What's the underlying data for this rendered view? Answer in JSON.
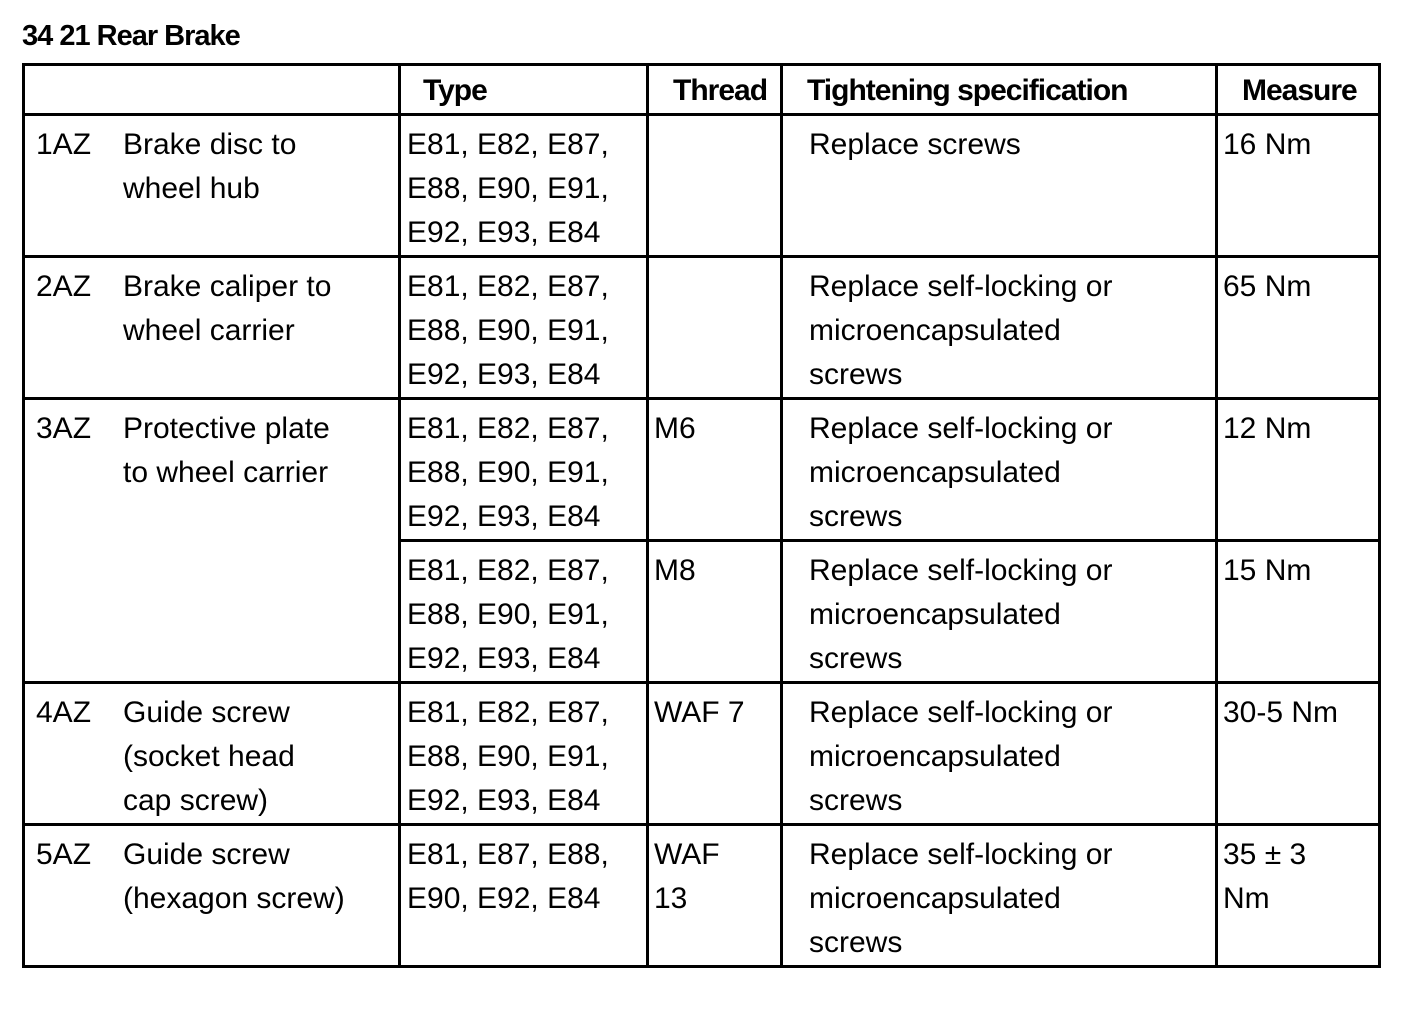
{
  "title": "34 21 Rear Brake",
  "headers": {
    "item": "",
    "type": "Type",
    "thread": "Thread",
    "spec": "Tightening specification",
    "measure": "Measure"
  },
  "rows": [
    {
      "id": "1AZ",
      "desc": "Brake disc to\nwheel hub",
      "type": "E81, E82, E87,\nE88, E90, E91,\nE92, E93, E84",
      "thread": "",
      "spec": "Replace screws",
      "measure": "16 Nm",
      "height": 142
    },
    {
      "id": "2AZ",
      "desc": "Brake caliper to\nwheel carrier",
      "type": "E81, E82, E87,\nE88, E90, E91,\nE92, E93, E84",
      "thread": "",
      "spec": "Replace self-locking or\nmicroencapsulated\nscrews",
      "measure": "65 Nm"
    },
    {
      "id": "3AZ",
      "desc": "Protective plate\nto wheel carrier",
      "span": 2,
      "type": "E81, E82, E87,\nE88, E90, E91,\nE92, E93, E84",
      "thread": "M6",
      "spec": "Replace self-locking or\nmicroencapsulated\nscrews",
      "measure": "12 Nm"
    },
    {
      "cont": true,
      "type": "E81, E82, E87,\nE88, E90, E91,\nE92, E93, E84",
      "thread": "M8",
      "spec": "Replace self-locking or\nmicroencapsulated\nscrews",
      "measure": "15 Nm"
    },
    {
      "id": "4AZ",
      "desc": "Guide screw\n(socket head\ncap screw)",
      "type": "E81, E82, E87,\nE88, E90, E91,\nE92, E93, E84",
      "thread": "WAF 7",
      "spec": "Replace self-locking or\nmicroencapsulated\nscrews",
      "measure": "30-5 Nm"
    },
    {
      "id": "5AZ",
      "desc": "Guide screw\n(hexagon screw)",
      "type": "E81, E87, E88,\nE90, E92, E84",
      "thread": "WAF\n13",
      "spec": "Replace self-locking or\nmicroencapsulated\nscrews",
      "measure": "35 ± 3\nNm"
    }
  ]
}
